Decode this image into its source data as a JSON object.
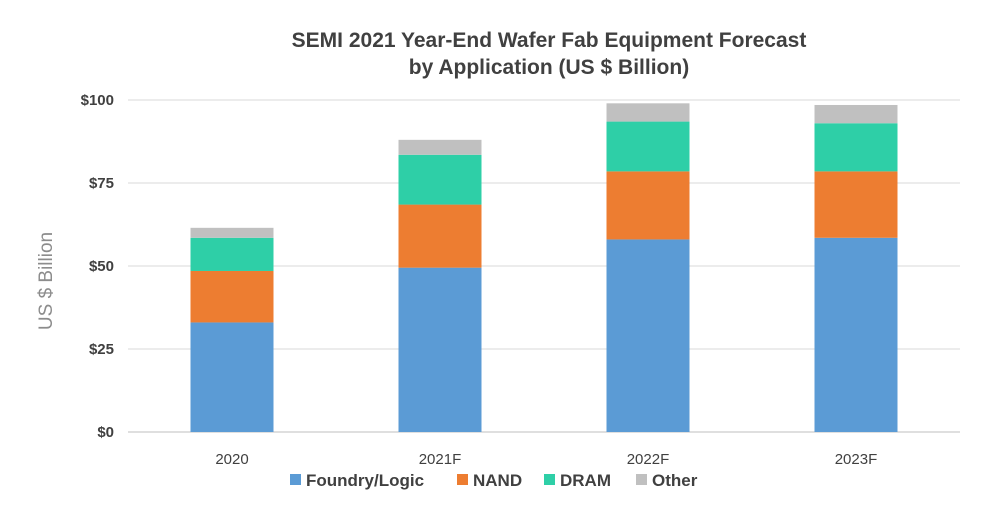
{
  "chart_data": {
    "type": "bar",
    "stacked": true,
    "title_line1": "SEMI 2021 Year-End Wafer Fab Equipment Forecast",
    "title_line2": "by Application (US $ Billion)",
    "ylabel": "US $ Billion",
    "xlabel": "",
    "categories": [
      "2020",
      "2021F",
      "2022F",
      "2023F"
    ],
    "ylim": [
      0,
      100
    ],
    "yticks": [
      0,
      25,
      50,
      75,
      100
    ],
    "ytick_labels": [
      "$0",
      "$25",
      "$50",
      "$75",
      "$100"
    ],
    "grid": true,
    "legend_position": "bottom",
    "series": [
      {
        "name": "Foundry/Logic",
        "color": "#5b9bd5",
        "values": [
          33,
          49.5,
          58,
          58.5
        ]
      },
      {
        "name": "NAND",
        "color": "#ed7d31",
        "values": [
          15.5,
          19,
          20.5,
          20
        ]
      },
      {
        "name": "DRAM",
        "color": "#2ecfa7",
        "values": [
          10,
          15,
          15,
          14.5
        ]
      },
      {
        "name": "Other",
        "color": "#c0c0c0",
        "values": [
          3,
          4.5,
          5.5,
          5.5
        ]
      }
    ]
  }
}
